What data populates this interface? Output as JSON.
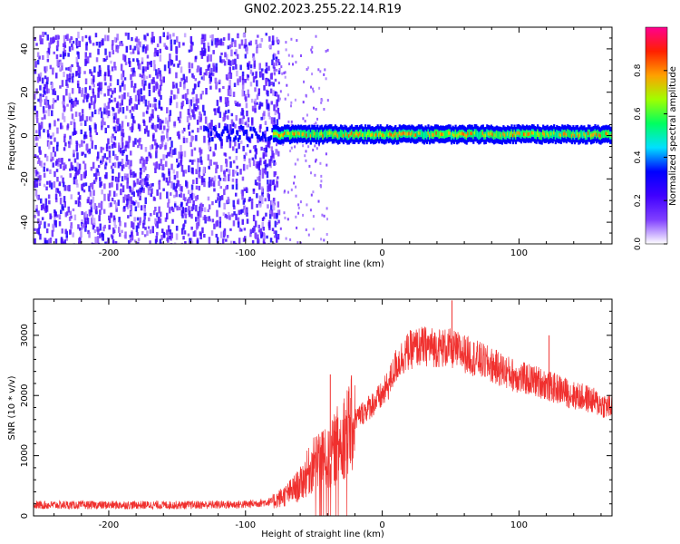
{
  "title": "GN02.2023.255.22.14.R19",
  "chart_data": [
    {
      "type": "heatmap",
      "name": "spectrogram",
      "xlabel": "Height of straight line (km)",
      "ylabel": "Frequency (Hz)",
      "xlim": [
        -255,
        168
      ],
      "ylim": [
        -50,
        50
      ],
      "xticks": [
        -200,
        -100,
        0,
        100
      ],
      "yticks": [
        -40,
        -20,
        0,
        20,
        40
      ],
      "grid": false,
      "colorbar": {
        "label": "Normalized spectral amplitude",
        "range": [
          0,
          1
        ],
        "ticks": [
          "0.0",
          "0.2",
          "0.4",
          "0.6",
          "0.8"
        ],
        "tick_values": [
          0,
          0.2,
          0.4,
          0.6,
          0.8
        ],
        "colormap": [
          "#ffffff",
          "#8040ff",
          "#4000ff",
          "#0000ff",
          "#00e0ff",
          "#00ff60",
          "#a0ff00",
          "#ffa000",
          "#ff2000",
          "#ff0090"
        ]
      },
      "regions": [
        {
          "description": "broadband noise",
          "x_range": [
            -255,
            -80
          ],
          "freq_range": [
            -50,
            48
          ],
          "amplitude_range": [
            0.05,
            0.3
          ]
        },
        {
          "description": "narrow carrier band",
          "x_range": [
            -80,
            168
          ],
          "center_freq_hz": 0.5,
          "halfwidth_hz": 4,
          "peak_amplitude": 0.85
        }
      ]
    },
    {
      "type": "line",
      "name": "snr",
      "xlabel": "Height of straight line (km)",
      "ylabel": "SNR (10 * v/v)",
      "xlim": [
        -255,
        168
      ],
      "ylim": [
        0,
        3600
      ],
      "xticks": [
        -200,
        -100,
        0,
        100
      ],
      "yticks": [
        0,
        1000,
        2000,
        3000
      ],
      "color": "#f0302e",
      "grid": false,
      "x": [
        -255,
        -200,
        -150,
        -100,
        -80,
        -70,
        -60,
        -55,
        -50,
        -45,
        -40,
        -35,
        -30,
        -25,
        -20,
        -10,
        0,
        5,
        10,
        15,
        20,
        25,
        30,
        40,
        50,
        60,
        70,
        80,
        90,
        100,
        110,
        118,
        122,
        130,
        140,
        150,
        160,
        168
      ],
      "values": [
        180,
        180,
        180,
        190,
        240,
        350,
        520,
        700,
        850,
        1000,
        900,
        1100,
        1300,
        1420,
        1600,
        1800,
        2000,
        2200,
        2500,
        2650,
        2750,
        2800,
        2820,
        2800,
        2780,
        2700,
        2600,
        2500,
        2400,
        2300,
        2250,
        2200,
        2150,
        2100,
        2000,
        1950,
        1850,
        1800
      ],
      "spikes": [
        {
          "x": -38,
          "y": 2350
        },
        {
          "x": 51,
          "y": 3580
        },
        {
          "x": 122,
          "y": 3000
        }
      ]
    }
  ]
}
